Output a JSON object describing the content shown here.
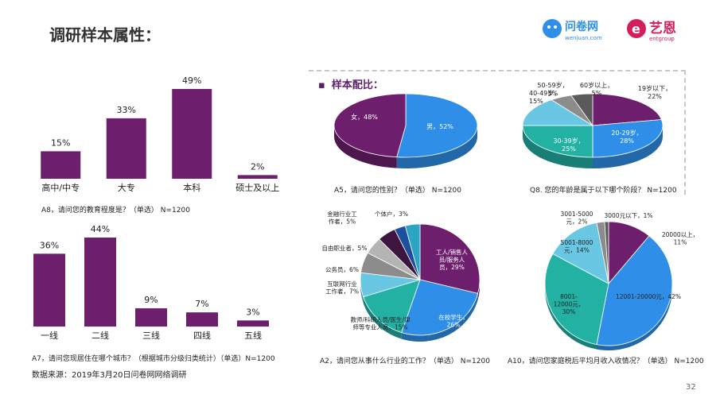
{
  "slide": {
    "title": "调研样本属性：",
    "section_title": "样本配比：",
    "source": "数据来源：2019年3月20日问卷网网络调研",
    "page_number": "32",
    "logo_wenjuan": {
      "name": "问卷网",
      "sub": "wenjuan.com"
    },
    "logo_yien": {
      "name": "艺恩",
      "sub": "entgroup"
    }
  },
  "colors": {
    "purple": "#6d1f6e",
    "blue": "#2f8fe8",
    "teal": "#23b1a4",
    "light_blue": "#69c7e3",
    "gray": "#8c8c8c",
    "dark_gray": "#5a5a5a",
    "dark_blue": "#1d4f9e",
    "dark_purple": "#3d1640"
  },
  "chart_data": [
    {
      "id": "education",
      "type": "bar",
      "caption": "A8，请问您的教育程度是？（单选） N=1200",
      "categories": [
        "高中/中专",
        "大专",
        "本科",
        "硕士及以上"
      ],
      "values": [
        15,
        33,
        49,
        2
      ],
      "labels": [
        "15%",
        "33%",
        "49%",
        "2%"
      ],
      "color": "#6d1f6e"
    },
    {
      "id": "city",
      "type": "bar",
      "caption": "A7，请问您现居住在哪个城市？（根据城市分级归类统计）（单选）N=1200",
      "categories": [
        "一线",
        "二线",
        "三线",
        "四线",
        "五线"
      ],
      "values": [
        36,
        44,
        9,
        7,
        3
      ],
      "labels": [
        "36%",
        "44%",
        "9%",
        "7%",
        "3%"
      ],
      "color": "#6d1f6e"
    },
    {
      "id": "gender",
      "type": "pie",
      "caption": "A5，请问您的性别？（单选） N=1200",
      "slices": [
        {
          "label": "男，52%",
          "value": 52,
          "color": "#2f8fe8"
        },
        {
          "label": "女，48%",
          "value": 48,
          "color": "#6d1f6e"
        }
      ]
    },
    {
      "id": "age",
      "type": "pie",
      "caption": "Q8. 您的年龄是属于以下哪个阶段？ N=1200",
      "slices": [
        {
          "label": "19岁以下，22%",
          "value": 22,
          "color": "#6d1f6e"
        },
        {
          "label": "20-29岁，28%",
          "value": 28,
          "color": "#2f8fe8"
        },
        {
          "label": "30-39岁，25%",
          "value": 25,
          "color": "#23b1a4"
        },
        {
          "label": "40-49岁，15%",
          "value": 15,
          "color": "#69c7e3"
        },
        {
          "label": "50-59岁，5%",
          "value": 5,
          "color": "#8c8c8c"
        },
        {
          "label": "60岁以上，5%",
          "value": 5,
          "color": "#5a5a5a"
        }
      ]
    },
    {
      "id": "occupation",
      "type": "pie",
      "caption": "A2，请问您从事什么行业的工作？（单选） N=1200",
      "slices": [
        {
          "label": "工人/销售人员/服务人员，29%",
          "value": 29,
          "color": "#6d1f6e"
        },
        {
          "label": "在校学生，26%",
          "value": 26,
          "color": "#2f8fe8"
        },
        {
          "label": "教师/科研人员/医生/律师等专业人员，15%",
          "value": 15,
          "color": "#23b1a4"
        },
        {
          "label": "互联网行业工作者，7%",
          "value": 7,
          "color": "#69c7e3"
        },
        {
          "label": "公务员，6%",
          "value": 6,
          "color": "#8c8c8c"
        },
        {
          "label": "自由职业者，5%",
          "value": 5,
          "color": "#b4b4b4"
        },
        {
          "label": "金融行业工作者，5%",
          "value": 5,
          "color": "#3d1640"
        },
        {
          "label": "个体户，3%",
          "value": 3,
          "color": "#1d4f9e"
        },
        {
          "label": "",
          "value": 4,
          "color": "#2aa6c4"
        }
      ]
    },
    {
      "id": "income",
      "type": "pie",
      "caption": "A10，请问您家庭税后平均月收入收情况？（单选） N=1200",
      "slices": [
        {
          "label": "20000以上，11%",
          "value": 11,
          "color": "#6d1f6e"
        },
        {
          "label": "12001-20000元，42%",
          "value": 42,
          "color": "#2f8fe8"
        },
        {
          "label": "8001-12000元，30%",
          "value": 30,
          "color": "#23b1a4"
        },
        {
          "label": "5001-8000元，14%",
          "value": 14,
          "color": "#69c7e3"
        },
        {
          "label": "3001-5000元，2%",
          "value": 2,
          "color": "#8c8c8c"
        },
        {
          "label": "3000元以下，1%",
          "value": 1,
          "color": "#5a5a5a"
        }
      ]
    }
  ]
}
